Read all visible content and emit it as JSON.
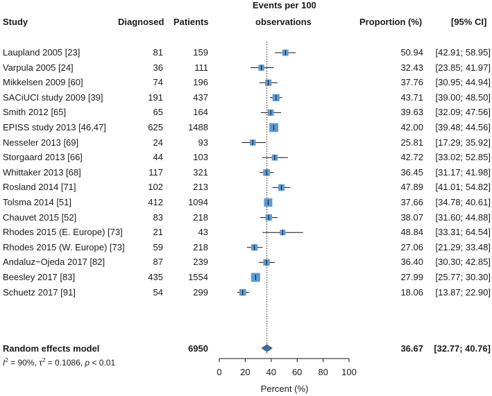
{
  "headers": {
    "study": "Study",
    "diagnosed": "Diagnosed",
    "patients": "Patients",
    "events_line1": "Events per 100",
    "events_line2": "observations",
    "proportion": "Proportion (%)",
    "ci": "[95% CI]"
  },
  "rows": [
    {
      "study": "Laupland 2005 [23]",
      "diagnosed": "81",
      "patients": "159",
      "prop": "50.94",
      "ci": "[42.91; 58.95]"
    },
    {
      "study": "Varpula 2005 [24]",
      "diagnosed": "36",
      "patients": "111",
      "prop": "32.43",
      "ci": "[23.85; 41.97]"
    },
    {
      "study": "Mikkelsen 2009 [60]",
      "diagnosed": "74",
      "patients": "196",
      "prop": "37.76",
      "ci": "[30.95; 44.94]"
    },
    {
      "study": "SACiUCI study 2009 [39]",
      "diagnosed": "191",
      "patients": "437",
      "prop": "43.71",
      "ci": "[39.00; 48.50]"
    },
    {
      "study": "Smith 2012 [65]",
      "diagnosed": "65",
      "patients": "164",
      "prop": "39.63",
      "ci": "[32.09; 47.56]"
    },
    {
      "study": "EPISS study 2013 [46,47]",
      "diagnosed": "625",
      "patients": "1488",
      "prop": "42.00",
      "ci": "[39.48; 44.56]"
    },
    {
      "study": "Nesseler 2013 [69]",
      "diagnosed": "24",
      "patients": "93",
      "prop": "25.81",
      "ci": "[17.29; 35.92]"
    },
    {
      "study": "Storgaard 2013 [66]",
      "diagnosed": "44",
      "patients": "103",
      "prop": "42.72",
      "ci": "[33.02; 52.85]"
    },
    {
      "study": "Whittaker 2013 [68]",
      "diagnosed": "117",
      "patients": "321",
      "prop": "36.45",
      "ci": "[31.17; 41.98]"
    },
    {
      "study": "Rosland 2014 [71]",
      "diagnosed": "102",
      "patients": "213",
      "prop": "47.89",
      "ci": "[41.01; 54.82]"
    },
    {
      "study": "Tolsma 2014 [51]",
      "diagnosed": "412",
      "patients": "1094",
      "prop": "37.66",
      "ci": "[34.78; 40.61]"
    },
    {
      "study": "Chauvet 2015 [52]",
      "diagnosed": "83",
      "patients": "218",
      "prop": "38.07",
      "ci": "[31.60; 44.88]"
    },
    {
      "study": "Rhodes 2015 (E. Europe) [73]",
      "diagnosed": "21",
      "patients": "43",
      "prop": "48.84",
      "ci": "[33.31; 64.54]"
    },
    {
      "study": "Rhodes 2015 (W. Europe) [73]",
      "diagnosed": "59",
      "patients": "218",
      "prop": "27.06",
      "ci": "[21.29; 33.48]"
    },
    {
      "study": "Andaluz−Ojeda 2017 [82]",
      "diagnosed": "87",
      "patients": "239",
      "prop": "36.40",
      "ci": "[30.30; 42.85]"
    },
    {
      "study": "Beesley 2017 [83]",
      "diagnosed": "435",
      "patients": "1554",
      "prop": "27.99",
      "ci": "[25.77; 30.30]"
    },
    {
      "study": "Schuetz 2017 [91]",
      "diagnosed": "54",
      "patients": "299",
      "prop": "18.06",
      "ci": "[13.87; 22.90]"
    }
  ],
  "summary": {
    "label": "Random effects model",
    "patients": "6950",
    "prop": "36.67",
    "ci": "[32.77; 40.76]"
  },
  "heterogeneity": {
    "i2_symbol": "I",
    "i2_sup": "2",
    "i2_value": " = 90%, ",
    "tau_symbol": "τ",
    "tau_sup": "2",
    "tau_value": " = 0.1086, ",
    "p_symbol": "p",
    "p_value": " < 0.01"
  },
  "chart_data": {
    "type": "forest",
    "title": "Events per 100 observations",
    "xlabel": "Percent (%)",
    "xlim": [
      0,
      100
    ],
    "xticks": [
      "0",
      "20",
      "40",
      "60",
      "80",
      "100"
    ],
    "reference_line": 36.67,
    "marker_color": "#5b9bd5",
    "summary_color": "#3f6e99",
    "estimates": [
      {
        "study": "Laupland 2005 [23]",
        "est": 50.94,
        "lower": 42.91,
        "upper": 58.95,
        "weight": 159
      },
      {
        "study": "Varpula 2005 [24]",
        "est": 32.43,
        "lower": 23.85,
        "upper": 41.97,
        "weight": 111
      },
      {
        "study": "Mikkelsen 2009 [60]",
        "est": 37.76,
        "lower": 30.95,
        "upper": 44.94,
        "weight": 196
      },
      {
        "study": "SACiUCI study 2009 [39]",
        "est": 43.71,
        "lower": 39.0,
        "upper": 48.5,
        "weight": 437
      },
      {
        "study": "Smith 2012 [65]",
        "est": 39.63,
        "lower": 32.09,
        "upper": 47.56,
        "weight": 164
      },
      {
        "study": "EPISS study 2013 [46,47]",
        "est": 42.0,
        "lower": 39.48,
        "upper": 44.56,
        "weight": 1488
      },
      {
        "study": "Nesseler 2013 [69]",
        "est": 25.81,
        "lower": 17.29,
        "upper": 35.92,
        "weight": 93
      },
      {
        "study": "Storgaard 2013 [66]",
        "est": 42.72,
        "lower": 33.02,
        "upper": 52.85,
        "weight": 103
      },
      {
        "study": "Whittaker 2013 [68]",
        "est": 36.45,
        "lower": 31.17,
        "upper": 41.98,
        "weight": 321
      },
      {
        "study": "Rosland 2014 [71]",
        "est": 47.89,
        "lower": 41.01,
        "upper": 54.82,
        "weight": 213
      },
      {
        "study": "Tolsma 2014 [51]",
        "est": 37.66,
        "lower": 34.78,
        "upper": 40.61,
        "weight": 1094
      },
      {
        "study": "Chauvet 2015 [52]",
        "est": 38.07,
        "lower": 31.6,
        "upper": 44.88,
        "weight": 218
      },
      {
        "study": "Rhodes 2015 (E. Europe) [73]",
        "est": 48.84,
        "lower": 33.31,
        "upper": 64.54,
        "weight": 43
      },
      {
        "study": "Rhodes 2015 (W. Europe) [73]",
        "est": 27.06,
        "lower": 21.29,
        "upper": 33.48,
        "weight": 218
      },
      {
        "study": "Andaluz−Ojeda 2017 [82]",
        "est": 36.4,
        "lower": 30.3,
        "upper": 42.85,
        "weight": 239
      },
      {
        "study": "Beesley 2017 [83]",
        "est": 27.99,
        "lower": 25.77,
        "upper": 30.3,
        "weight": 1554
      },
      {
        "study": "Schuetz 2017 [91]",
        "est": 18.06,
        "lower": 13.87,
        "upper": 22.9,
        "weight": 299
      }
    ],
    "summary": {
      "label": "Random effects model",
      "est": 36.67,
      "lower": 32.77,
      "upper": 40.76
    }
  }
}
